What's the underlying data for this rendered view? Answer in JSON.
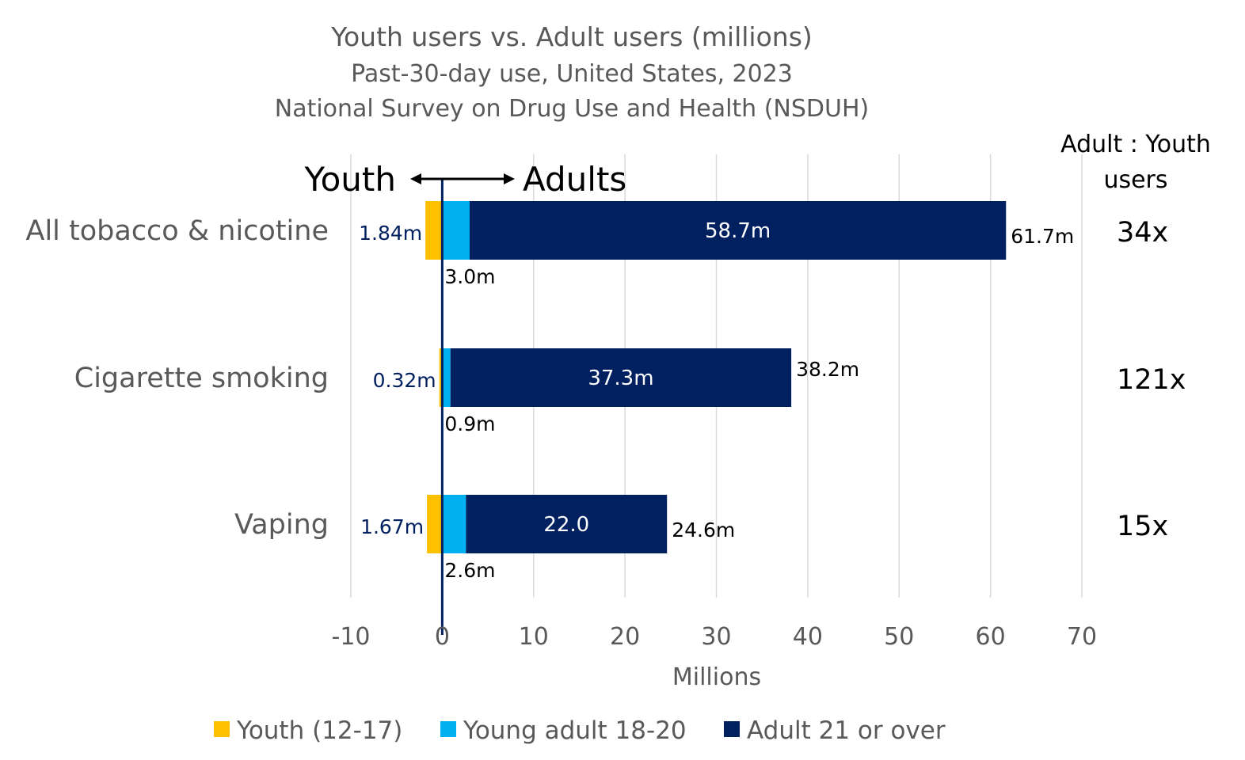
{
  "chart_data": {
    "type": "bar",
    "orientation": "horizontal",
    "stacked": true,
    "title": "Youth users vs. Adult users (millions)",
    "subtitle_1": "Past-30-day use, United States, 2023",
    "subtitle_2": "National Survey on Drug Use and Health (NSDUH)",
    "direction_left": "Youth",
    "direction_right": "Adults",
    "xlabel": "Millions",
    "xlim": [
      -10,
      70
    ],
    "xticks": [
      -10,
      0,
      10,
      20,
      30,
      40,
      50,
      60,
      70
    ],
    "xtick_labels": [
      "-10",
      "0",
      "10",
      "20",
      "30",
      "40",
      "50",
      "60",
      "70"
    ],
    "grid": true,
    "legend_position": "bottom",
    "ratio_header": [
      "Adult : Youth",
      "users"
    ],
    "series": [
      {
        "name": "Youth (12-17)",
        "color": "#FFC000",
        "values": [
          -1.84,
          -0.32,
          -1.67
        ]
      },
      {
        "name": "Young adult 18-20",
        "color": "#00B0F0",
        "values": [
          3.0,
          0.9,
          2.6
        ]
      },
      {
        "name": "Adult 21 or over",
        "color": "#002060",
        "values": [
          58.7,
          37.3,
          22.0
        ]
      }
    ],
    "categories": [
      {
        "label": "All tobacco & nicotine",
        "youth": 1.84,
        "young_adult": 3.0,
        "adult": 58.7,
        "total_adult": 61.7,
        "youth_label": "1.84m",
        "young_adult_label": "3.0m",
        "adult_label": "58.7m",
        "total_label": "61.7m",
        "ratio": "34x"
      },
      {
        "label": "Cigarette smoking",
        "youth": 0.32,
        "young_adult": 0.9,
        "adult": 37.3,
        "total_adult": 38.2,
        "youth_label": "0.32m",
        "young_adult_label": "0.9m",
        "adult_label": "37.3m",
        "total_label": "38.2m",
        "ratio": "121x"
      },
      {
        "label": "Vaping",
        "youth": 1.67,
        "young_adult": 2.6,
        "adult": 22.0,
        "total_adult": 24.6,
        "youth_label": "1.67m",
        "young_adult_label": "2.6m",
        "adult_label": "22.0",
        "total_label": "24.6m",
        "ratio": "15x"
      }
    ]
  },
  "colors": {
    "youth": "#FFC000",
    "young_adult": "#00B0F0",
    "adult": "#002060",
    "grid": "#D9D9D9",
    "text_gray": "#595959",
    "youth_label_text": "#002060"
  }
}
